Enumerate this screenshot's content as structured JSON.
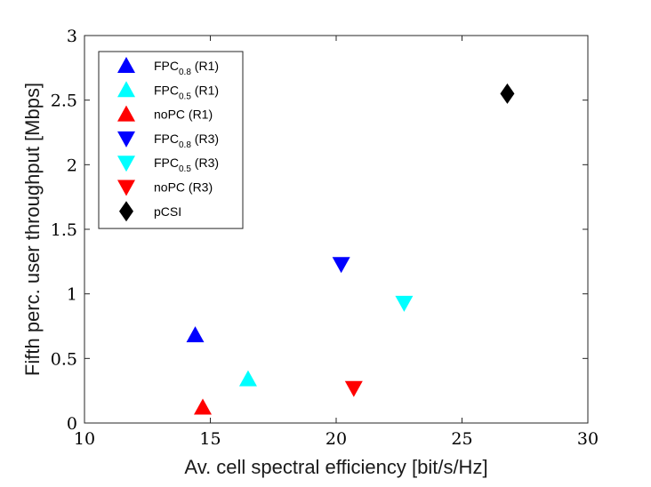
{
  "chart_data": {
    "type": "scatter",
    "title": "",
    "xlabel": "Av. cell spectral efficiency [bit/s/Hz]",
    "ylabel": "Fifth perc. user throughput [Mbps]",
    "xlim": [
      10,
      30
    ],
    "ylim": [
      0,
      3
    ],
    "xticks": [
      "10",
      "15",
      "20",
      "25",
      "30"
    ],
    "yticks": [
      "0",
      "0.5",
      "1",
      "1.5",
      "2",
      "2.5",
      "3"
    ],
    "grid": false,
    "legend_position": "top-left",
    "series": [
      {
        "name": "FPC0.8 (R1)",
        "label_main": "FPC",
        "label_sub": "0.8",
        "label_tail": " (R1)",
        "marker": "triangle-up",
        "color": "#0000ff",
        "points": [
          {
            "x": 14.4,
            "y": 0.68
          }
        ]
      },
      {
        "name": "FPC0.5 (R1)",
        "label_main": "FPC",
        "label_sub": "0.5",
        "label_tail": " (R1)",
        "marker": "triangle-up",
        "color": "#00ffff",
        "points": [
          {
            "x": 16.5,
            "y": 0.34
          }
        ]
      },
      {
        "name": "noPC (R1)",
        "label_main": "noPC (R1)",
        "label_sub": "",
        "label_tail": "",
        "marker": "triangle-up",
        "color": "#ff0000",
        "points": [
          {
            "x": 14.7,
            "y": 0.12
          }
        ]
      },
      {
        "name": "FPC0.8 (R3)",
        "label_main": "FPC",
        "label_sub": "0.8",
        "label_tail": " (R3)",
        "marker": "triangle-down",
        "color": "#0000ff",
        "points": [
          {
            "x": 20.2,
            "y": 1.23
          }
        ]
      },
      {
        "name": "FPC0.5 (R3)",
        "label_main": "FPC",
        "label_sub": "0.5",
        "label_tail": " (R3)",
        "marker": "triangle-down",
        "color": "#00ffff",
        "points": [
          {
            "x": 22.7,
            "y": 0.93
          }
        ]
      },
      {
        "name": "noPC (R3)",
        "label_main": "noPC (R3)",
        "label_sub": "",
        "label_tail": "",
        "marker": "triangle-down",
        "color": "#ff0000",
        "points": [
          {
            "x": 20.7,
            "y": 0.27
          }
        ]
      },
      {
        "name": "pCSI",
        "label_main": "pCSI",
        "label_sub": "",
        "label_tail": "",
        "marker": "diamond",
        "color": "#000000",
        "points": [
          {
            "x": 26.8,
            "y": 2.55
          }
        ]
      }
    ]
  }
}
